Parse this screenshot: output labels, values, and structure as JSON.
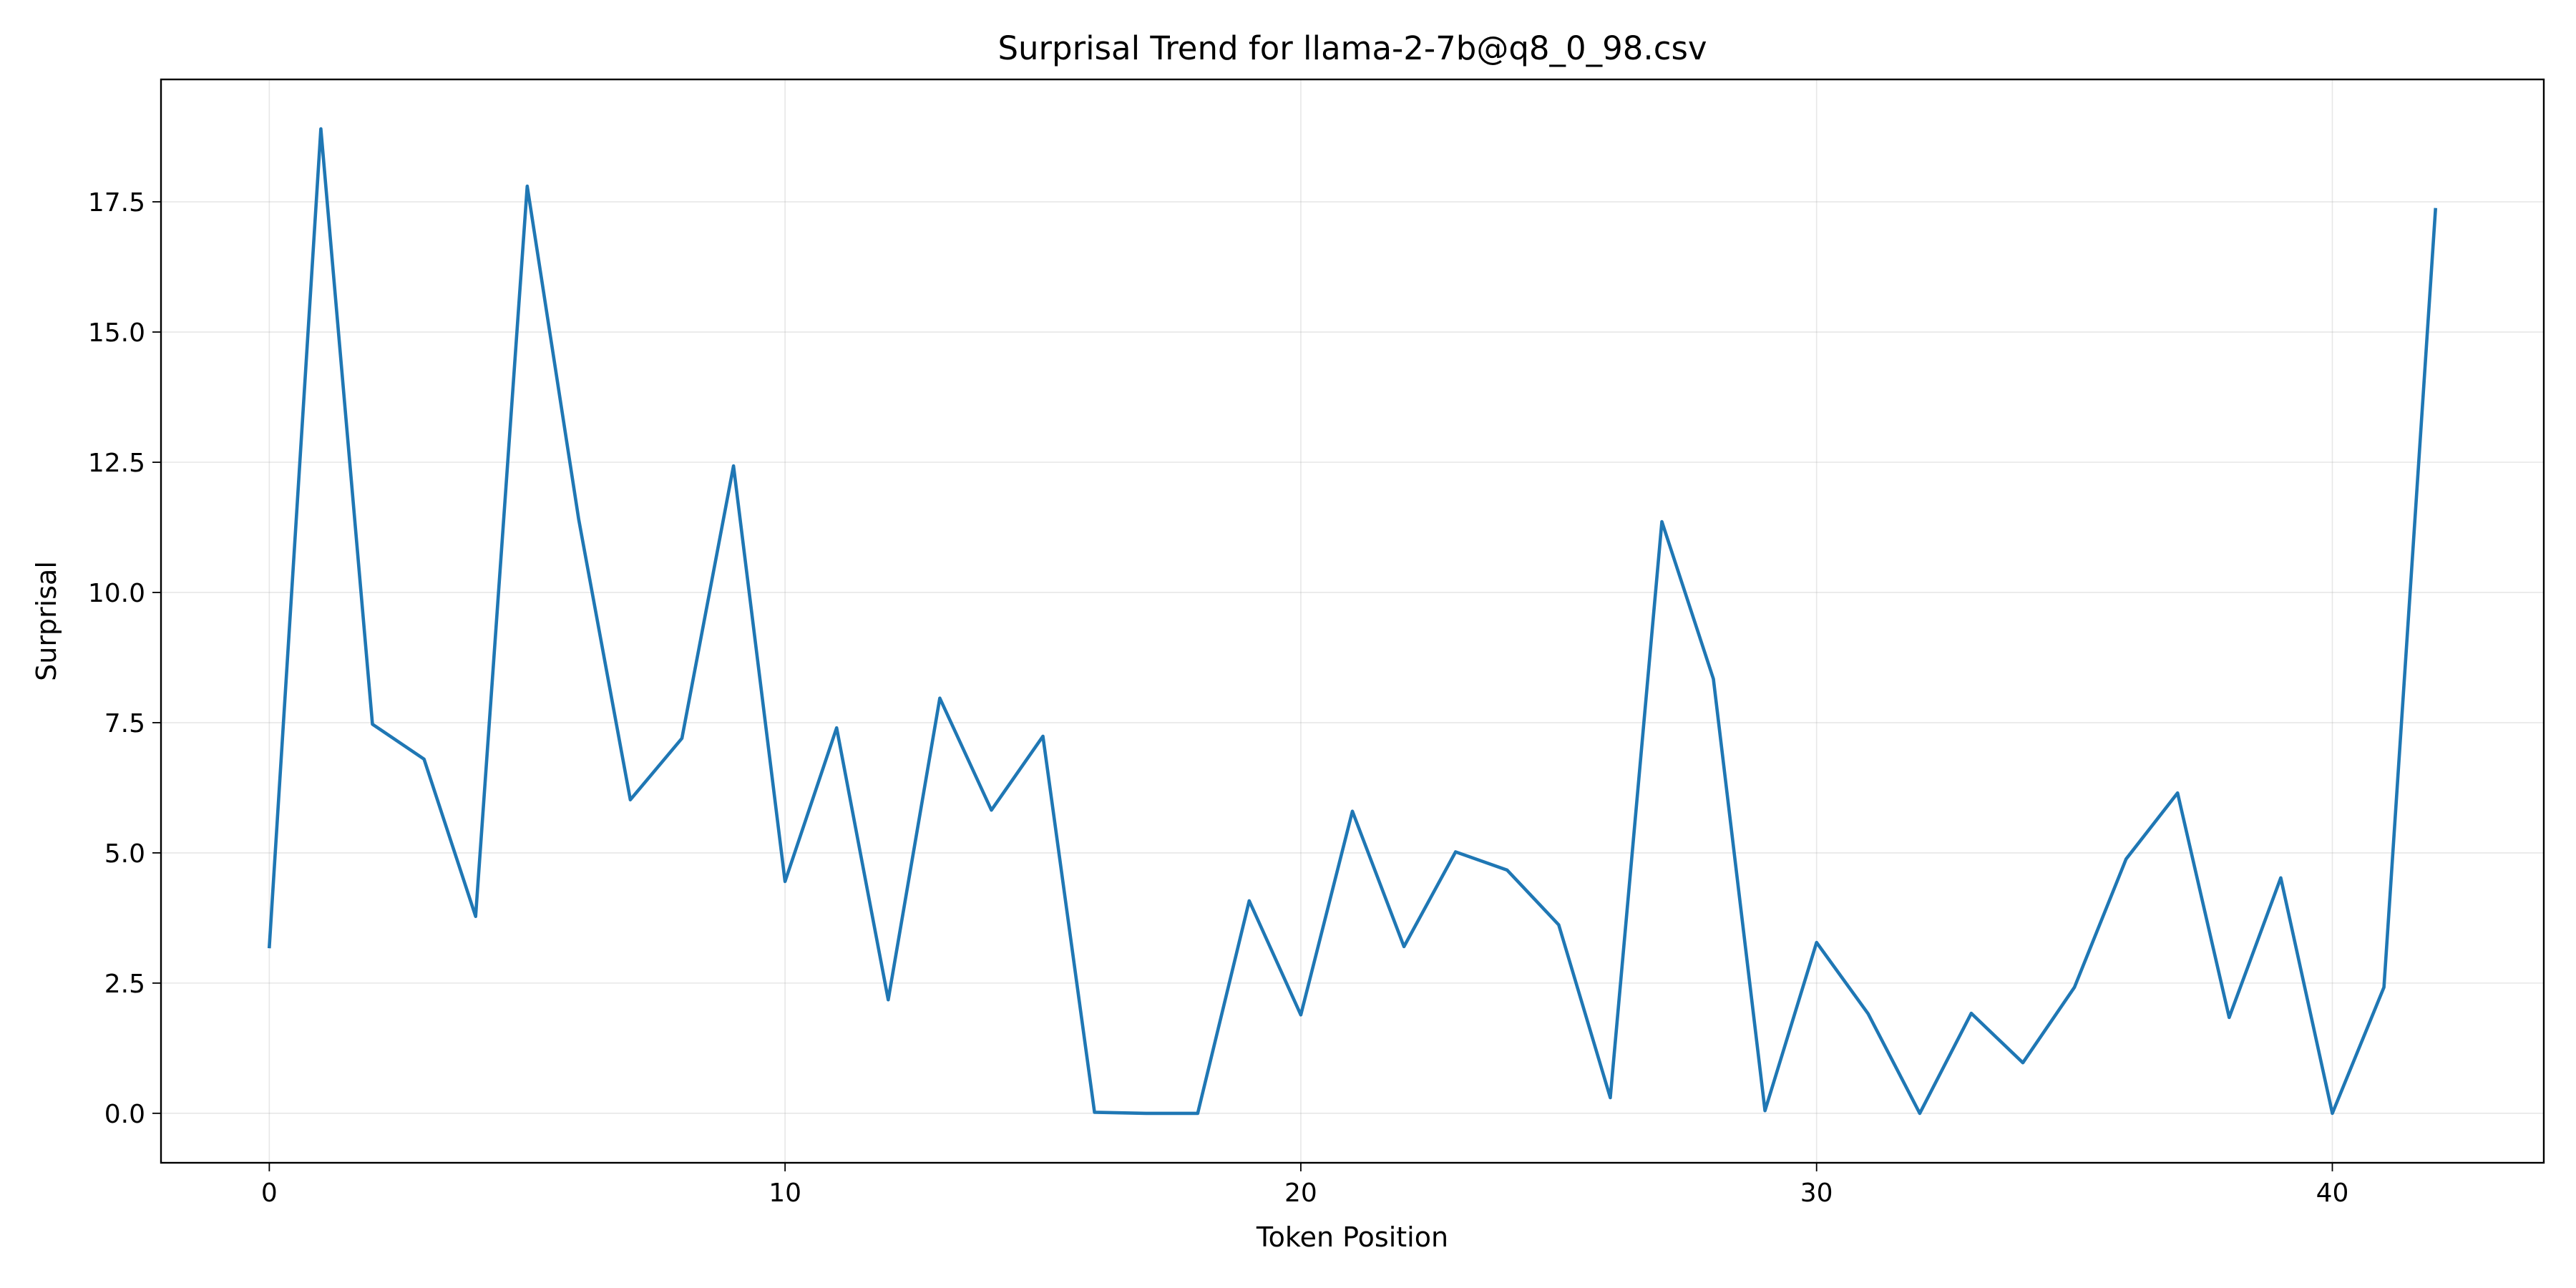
{
  "chart_data": {
    "type": "line",
    "title": "Surprisal Trend for llama-2-7b@q8_0_98.csv",
    "xlabel": "Token Position",
    "ylabel": "Surprisal",
    "xlim": [
      -2.1,
      44.1
    ],
    "ylim": [
      -0.95,
      19.85
    ],
    "x_ticks": [
      0,
      10,
      20,
      30,
      40
    ],
    "y_ticks": [
      0.0,
      2.5,
      5.0,
      7.5,
      10.0,
      12.5,
      15.0,
      17.5
    ],
    "x_tick_labels": [
      "0",
      "10",
      "20",
      "30",
      "40"
    ],
    "y_tick_labels": [
      "0.0",
      "2.5",
      "5.0",
      "7.5",
      "10.0",
      "12.5",
      "15.0",
      "17.5"
    ],
    "grid": true,
    "line_color": "#1f77b4",
    "series": [
      {
        "x": [
          0,
          1,
          2,
          3,
          4,
          5,
          6,
          7,
          8,
          9,
          10,
          11,
          12,
          13,
          14,
          15,
          16,
          17,
          18,
          19,
          20,
          21,
          22,
          23,
          24,
          25,
          26,
          27,
          28,
          29,
          30,
          31,
          32,
          33,
          34,
          35,
          36,
          37,
          38,
          39,
          40,
          41,
          42
        ],
        "values": [
          3.2,
          18.9,
          7.47,
          6.8,
          3.78,
          17.8,
          11.4,
          6.02,
          7.2,
          12.43,
          4.45,
          7.4,
          2.18,
          7.97,
          5.82,
          7.24,
          0.02,
          0.0,
          0.0,
          4.08,
          1.89,
          5.8,
          3.2,
          5.02,
          4.67,
          3.62,
          0.3,
          11.36,
          8.34,
          0.05,
          3.28,
          1.91,
          0.0,
          1.92,
          0.97,
          2.42,
          4.88,
          6.15,
          1.84,
          4.52,
          0.0,
          2.42,
          17.35
        ]
      }
    ]
  }
}
